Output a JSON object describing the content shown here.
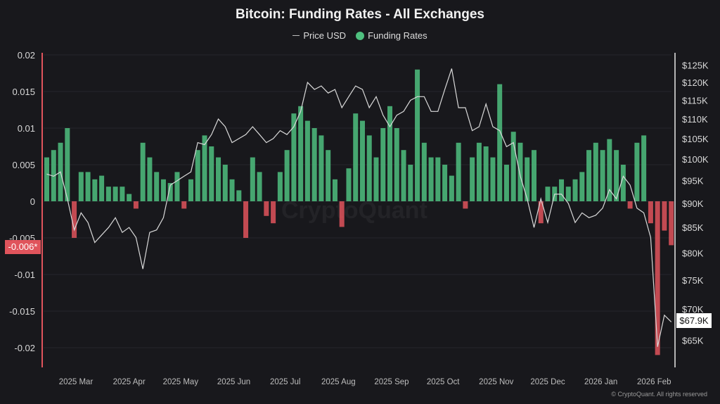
{
  "chart_data": {
    "type": "bar+line",
    "title": "Bitcoin: Funding Rates - All Exchanges",
    "legend": {
      "placement": "top-center",
      "entries": [
        "Price USD",
        "Funding Rates"
      ]
    },
    "watermark": "CryptoQuant",
    "footer": "© CryptoQuant. All rights reserved",
    "colors": {
      "positive": "#4fc07f",
      "negative": "#e0545c",
      "price_line": "#d9d9d9",
      "background": "#18181c"
    },
    "left_axis": {
      "ticks": [
        "0.02",
        "0.015",
        "0.01",
        "0.005",
        "0",
        "-0.005",
        "-0.01",
        "-0.015",
        "-0.02"
      ],
      "tick_values": [
        0.02,
        0.015,
        0.01,
        0.005,
        0,
        -0.005,
        -0.01,
        -0.015,
        -0.02
      ],
      "ylim": [
        -0.0227,
        0.02
      ],
      "current_tag": "-0.006*"
    },
    "right_axis": {
      "scale": "log",
      "ticks": [
        "$125K",
        "$120K",
        "$115K",
        "$110K",
        "$105K",
        "$100K",
        "$95K",
        "$90K",
        "$85K",
        "$80K",
        "$75K",
        "$70K",
        "$65K"
      ],
      "tick_values": [
        125,
        120,
        115,
        110,
        105,
        100,
        95,
        90,
        85,
        80,
        75,
        70,
        65
      ],
      "unit": "K USD",
      "current_tag": "$67.9K"
    },
    "x_ticks": [
      "2025 Mar",
      "2025 Apr",
      "2025 May",
      "2025 Jun",
      "2025 Jul",
      "2025 Aug",
      "2025 Sep",
      "2025 Oct",
      "2025 Nov",
      "2025 Dec",
      "2026 Jan",
      "2026 Feb"
    ],
    "x_tick_dates": [
      "2025-03-01",
      "2025-04-01",
      "2025-05-01",
      "2025-06-01",
      "2025-07-01",
      "2025-08-01",
      "2025-09-01",
      "2025-10-01",
      "2025-11-01",
      "2025-12-01",
      "2026-01-01",
      "2026-02-01"
    ],
    "grid": "horizontal",
    "x": [
      "2025-02-12",
      "2025-02-16",
      "2025-02-20",
      "2025-02-24",
      "2025-02-28",
      "2025-03-04",
      "2025-03-08",
      "2025-03-12",
      "2025-03-16",
      "2025-03-20",
      "2025-03-24",
      "2025-03-28",
      "2025-04-01",
      "2025-04-05",
      "2025-04-09",
      "2025-04-13",
      "2025-04-17",
      "2025-04-21",
      "2025-04-25",
      "2025-04-29",
      "2025-05-03",
      "2025-05-07",
      "2025-05-11",
      "2025-05-15",
      "2025-05-19",
      "2025-05-23",
      "2025-05-27",
      "2025-05-31",
      "2025-06-04",
      "2025-06-08",
      "2025-06-12",
      "2025-06-16",
      "2025-06-20",
      "2025-06-24",
      "2025-06-28",
      "2025-07-02",
      "2025-07-06",
      "2025-07-10",
      "2025-07-14",
      "2025-07-18",
      "2025-07-22",
      "2025-07-26",
      "2025-07-30",
      "2025-08-03",
      "2025-08-07",
      "2025-08-11",
      "2025-08-15",
      "2025-08-19",
      "2025-08-23",
      "2025-08-27",
      "2025-08-31",
      "2025-09-04",
      "2025-09-08",
      "2025-09-12",
      "2025-09-16",
      "2025-09-20",
      "2025-09-24",
      "2025-09-28",
      "2025-10-02",
      "2025-10-06",
      "2025-10-10",
      "2025-10-14",
      "2025-10-18",
      "2025-10-22",
      "2025-10-26",
      "2025-10-30",
      "2025-11-03",
      "2025-11-07",
      "2025-11-11",
      "2025-11-15",
      "2025-11-19",
      "2025-11-23",
      "2025-11-27",
      "2025-12-01",
      "2025-12-05",
      "2025-12-09",
      "2025-12-13",
      "2025-12-17",
      "2025-12-21",
      "2025-12-25",
      "2025-12-29",
      "2026-01-02",
      "2026-01-06",
      "2026-01-10",
      "2026-01-14",
      "2026-01-18",
      "2026-01-22",
      "2026-01-26",
      "2026-01-30",
      "2026-02-03",
      "2026-02-07",
      "2026-02-11"
    ],
    "series": [
      {
        "name": "Funding Rates",
        "type": "bar",
        "values": [
          0.006,
          0.007,
          0.008,
          0.01,
          -0.005,
          0.004,
          0.004,
          0.003,
          0.0035,
          0.002,
          0.002,
          0.002,
          0.001,
          -0.001,
          0.008,
          0.006,
          0.004,
          0.003,
          0.0025,
          0.004,
          -0.001,
          0.003,
          0.007,
          0.009,
          0.0075,
          0.006,
          0.005,
          0.003,
          0.0015,
          -0.005,
          0.006,
          0.004,
          -0.002,
          -0.003,
          0.004,
          0.007,
          0.012,
          0.013,
          0.011,
          0.01,
          0.009,
          0.007,
          0.003,
          -0.0035,
          0.0045,
          0.012,
          0.011,
          0.009,
          0.006,
          0.01,
          0.013,
          0.01,
          0.007,
          0.005,
          0.018,
          0.008,
          0.006,
          0.006,
          0.005,
          0.0035,
          0.008,
          -0.001,
          0.006,
          0.008,
          0.0075,
          0.006,
          0.016,
          0.005,
          0.0095,
          0.008,
          0.006,
          0.007,
          -0.003,
          0.002,
          0.002,
          0.003,
          0.002,
          0.003,
          0.004,
          0.007,
          0.008,
          0.007,
          0.0085,
          0.007,
          0.005,
          -0.001,
          0.008,
          0.009,
          -0.003,
          -0.021,
          -0.004,
          -0.006
        ]
      },
      {
        "name": "Price USD",
        "type": "line",
        "unit": "K USD",
        "values": [
          96.5,
          96,
          97,
          91,
          84.5,
          88,
          86,
          82,
          83.5,
          85,
          87,
          84,
          85,
          83,
          77,
          84,
          84.5,
          87,
          94,
          95,
          96,
          97,
          104,
          103.5,
          106,
          110,
          108,
          104,
          105,
          106,
          108,
          106,
          104,
          105,
          107,
          106,
          108,
          112,
          120,
          118,
          119,
          117,
          118,
          113,
          116,
          119,
          118,
          113,
          116,
          111,
          108,
          111,
          112,
          115,
          116,
          116,
          112,
          112,
          118,
          124,
          113,
          113,
          107,
          108,
          114,
          108,
          107,
          103,
          104,
          96,
          91,
          85,
          91,
          86,
          92,
          92,
          90,
          86,
          88,
          87,
          87.5,
          89,
          93,
          91,
          96,
          94,
          89,
          88,
          83,
          64,
          69,
          67.9
        ]
      }
    ]
  }
}
